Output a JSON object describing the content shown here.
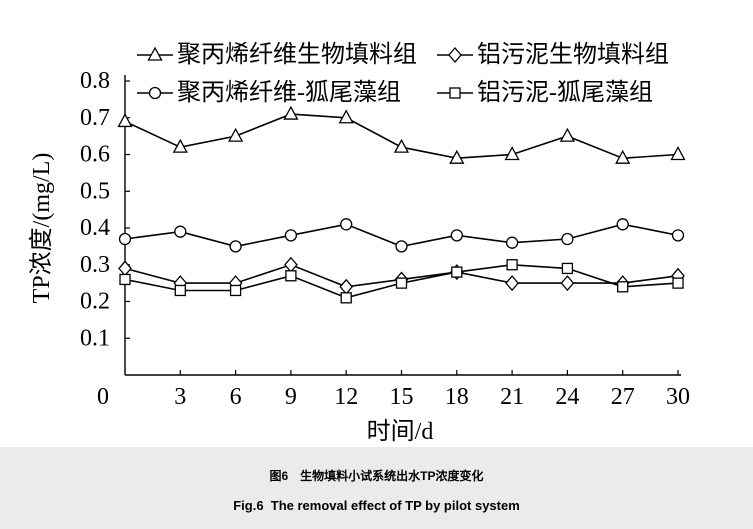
{
  "chart_data": {
    "type": "line",
    "x": [
      0,
      3,
      6,
      9,
      12,
      15,
      18,
      21,
      24,
      27,
      30
    ],
    "xticks": [
      0,
      3,
      6,
      9,
      12,
      15,
      18,
      21,
      24,
      27,
      30
    ],
    "yticks": [
      0.1,
      0.2,
      0.3,
      0.4,
      0.5,
      0.6,
      0.7,
      0.8
    ],
    "xlim": [
      0,
      30
    ],
    "ylim": [
      0,
      0.8
    ],
    "xlabel": "时间/d",
    "ylabel": "TP浓度/(mg/L)",
    "grid": false,
    "legend": "top",
    "series": [
      {
        "name": "聚丙烯纤维生物填料组",
        "marker": "open-triangle",
        "values": [
          0.69,
          0.62,
          0.65,
          0.71,
          0.7,
          0.62,
          0.59,
          0.6,
          0.65,
          0.59,
          0.6
        ]
      },
      {
        "name": "铝污泥生物填料组",
        "marker": "open-diamond",
        "values": [
          0.29,
          0.25,
          0.25,
          0.3,
          0.24,
          0.26,
          0.28,
          0.25,
          0.25,
          0.25,
          0.27
        ]
      },
      {
        "name": "聚丙烯纤维-狐尾藻组",
        "marker": "open-circle",
        "values": [
          0.37,
          0.39,
          0.35,
          0.38,
          0.41,
          0.35,
          0.38,
          0.36,
          0.37,
          0.41,
          0.38
        ]
      },
      {
        "name": "铝污泥-狐尾藻组",
        "marker": "open-square",
        "values": [
          0.26,
          0.23,
          0.23,
          0.27,
          0.21,
          0.25,
          0.28,
          0.3,
          0.29,
          0.24,
          0.25
        ]
      }
    ]
  },
  "caption": {
    "cn": "图6　生物填料小试系统出水TP浓度变化",
    "en": "Fig.6  The removal effect of TP by pilot system"
  },
  "colors": {
    "line": "#000000",
    "marker_fill": "#ffffff",
    "caption_band": "#ebebeb"
  }
}
